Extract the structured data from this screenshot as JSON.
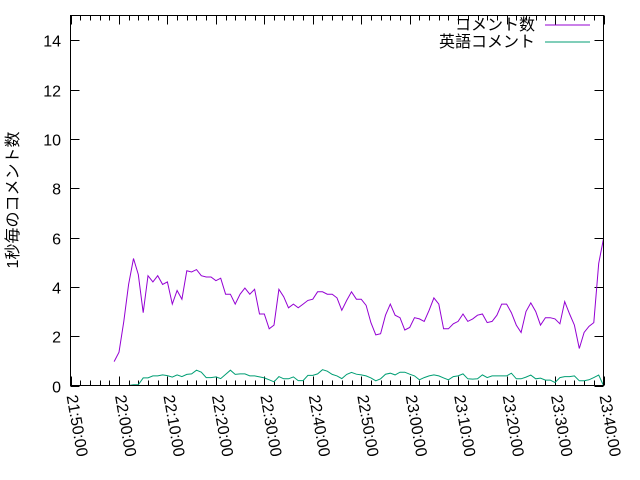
{
  "chart_data": {
    "type": "line",
    "title": "",
    "xlabel": "",
    "ylabel": "1秒毎のコメント数",
    "xlim": [
      "21:50:00",
      "23:40:00"
    ],
    "ylim": [
      0,
      15
    ],
    "x_ticks": [
      "21:50:00",
      "22:00:00",
      "22:10:00",
      "22:20:00",
      "22:30:00",
      "22:40:00",
      "22:50:00",
      "23:00:00",
      "23:10:00",
      "23:20:00",
      "23:30:00",
      "23:40:00"
    ],
    "y_ticks": [
      "0",
      "2",
      "4",
      "6",
      "8",
      "10",
      "12",
      "14"
    ],
    "grid": false,
    "legend_position": "top-right",
    "series": [
      {
        "name": "コメント数",
        "color": "#9400d3",
        "x_start": "21:59",
        "step_minutes": 1,
        "values": [
          0.97,
          1.35,
          2.6,
          4.1,
          5.15,
          4.5,
          2.95,
          4.45,
          4.2,
          4.45,
          4.1,
          4.2,
          3.3,
          3.85,
          3.5,
          4.65,
          4.6,
          4.7,
          4.45,
          4.4,
          4.4,
          4.25,
          4.35,
          3.7,
          3.7,
          3.3,
          3.7,
          3.95,
          3.7,
          3.9,
          2.9,
          2.9,
          2.3,
          2.45,
          3.9,
          3.6,
          3.15,
          3.3,
          3.15,
          3.3,
          3.45,
          3.5,
          3.8,
          3.8,
          3.7,
          3.7,
          3.55,
          3.05,
          3.45,
          3.8,
          3.5,
          3.5,
          3.25,
          2.55,
          2.05,
          2.1,
          2.85,
          3.3,
          2.85,
          2.75,
          2.25,
          2.35,
          2.75,
          2.7,
          2.6,
          3.05,
          3.55,
          3.3,
          2.3,
          2.3,
          2.5,
          2.6,
          2.9,
          2.6,
          2.7,
          2.85,
          2.9,
          2.55,
          2.6,
          2.85,
          3.3,
          3.3,
          2.95,
          2.45,
          2.15,
          3.0,
          3.35,
          3.0,
          2.45,
          2.75,
          2.75,
          2.7,
          2.5,
          3.4,
          2.9,
          2.45,
          1.5,
          2.15,
          2.4,
          2.55,
          4.95,
          5.95
        ]
      },
      {
        "name": "英語コメント",
        "color": "#009e73",
        "x_start": "22:02",
        "step_minutes": 1,
        "values": [
          0,
          0.03,
          0.03,
          0.31,
          0.31,
          0.39,
          0.39,
          0.43,
          0.4,
          0.34,
          0.43,
          0.36,
          0.45,
          0.47,
          0.62,
          0.54,
          0.32,
          0.32,
          0.35,
          0.28,
          0.45,
          0.62,
          0.45,
          0.47,
          0.47,
          0.39,
          0.39,
          0.35,
          0.31,
          0.23,
          0.15,
          0.36,
          0.27,
          0.27,
          0.35,
          0.2,
          0.2,
          0.41,
          0.41,
          0.47,
          0.64,
          0.58,
          0.45,
          0.39,
          0.28,
          0.45,
          0.53,
          0.46,
          0.43,
          0.39,
          0.31,
          0.19,
          0.27,
          0.46,
          0.5,
          0.43,
          0.54,
          0.54,
          0.46,
          0.39,
          0.23,
          0.32,
          0.39,
          0.43,
          0.39,
          0.31,
          0.23,
          0.36,
          0.39,
          0.47,
          0.27,
          0.26,
          0.27,
          0.43,
          0.32,
          0.39,
          0.39,
          0.39,
          0.39,
          0.5,
          0.27,
          0.27,
          0.34,
          0.42,
          0.27,
          0.3,
          0.22,
          0.22,
          0.12,
          0.32,
          0.36,
          0.36,
          0.39,
          0.19,
          0.19,
          0.23,
          0.32,
          0.42,
          0
        ]
      }
    ]
  }
}
